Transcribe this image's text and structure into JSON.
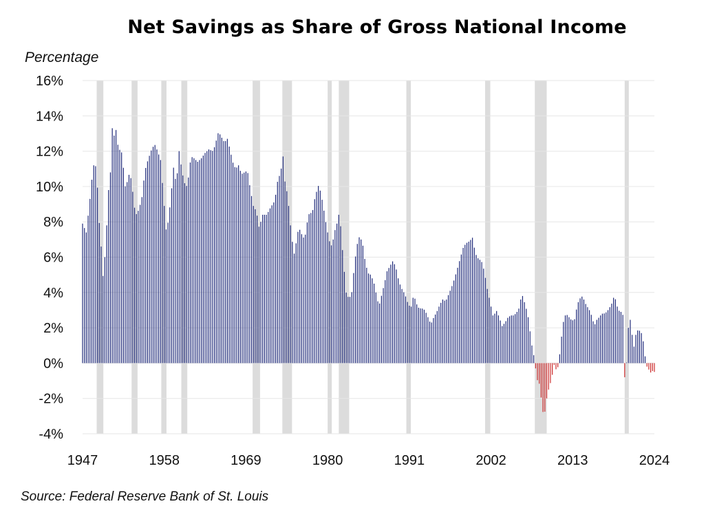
{
  "title": "Net Savings as Share of Gross National Income",
  "source": "Source: Federal Reserve Bank of St. Louis",
  "colors": {
    "positive": "#1f2a7a",
    "negative": "#cc2a2a",
    "recession": "#dcdcdc",
    "grid": "#e6e6e6"
  },
  "chart_data": {
    "type": "bar",
    "title": "Net Savings as Share of Gross National Income",
    "ylabel": "Percentage",
    "xlabel": "",
    "ylim": [
      -4,
      16
    ],
    "xlim": [
      1947,
      2024
    ],
    "y_ticks": [
      "16%",
      "14%",
      "12%",
      "10%",
      "8%",
      "6%",
      "4%",
      "2%",
      "0%",
      "-2%",
      "-4%"
    ],
    "y_tick_values": [
      16,
      14,
      12,
      10,
      8,
      6,
      4,
      2,
      0,
      -2,
      -4
    ],
    "x_ticks": [
      "1947",
      "1958",
      "1969",
      "1980",
      "1991",
      "2002",
      "2013",
      "2024"
    ],
    "x_tick_values": [
      1947,
      1958,
      1969,
      1980,
      1991,
      2002,
      2013,
      2024
    ],
    "frequency": "quarterly",
    "grid": true,
    "anchors": [
      [
        1947.0,
        7.9
      ],
      [
        1947.5,
        7.4
      ],
      [
        1948.0,
        9.3
      ],
      [
        1948.3,
        10.6
      ],
      [
        1948.6,
        11.5
      ],
      [
        1948.9,
        10.8
      ],
      [
        1949.2,
        8.2
      ],
      [
        1949.5,
        6.6
      ],
      [
        1949.8,
        4.6
      ],
      [
        1950.2,
        7.4
      ],
      [
        1950.5,
        9.8
      ],
      [
        1950.8,
        11.0
      ],
      [
        1951.0,
        13.3
      ],
      [
        1951.3,
        12.8
      ],
      [
        1951.5,
        13.2
      ],
      [
        1951.8,
        12.2
      ],
      [
        1952.3,
        11.9
      ],
      [
        1952.8,
        9.8
      ],
      [
        1953.2,
        10.7
      ],
      [
        1953.6,
        10.4
      ],
      [
        1953.9,
        9.0
      ],
      [
        1954.2,
        8.4
      ],
      [
        1954.6,
        8.7
      ],
      [
        1955.0,
        9.4
      ],
      [
        1955.4,
        10.9
      ],
      [
        1955.8,
        11.5
      ],
      [
        1956.3,
        12.1
      ],
      [
        1956.7,
        12.4
      ],
      [
        1957.1,
        12.0
      ],
      [
        1957.5,
        11.5
      ],
      [
        1958.0,
        8.9
      ],
      [
        1958.3,
        7.3
      ],
      [
        1958.7,
        8.6
      ],
      [
        1959.0,
        9.9
      ],
      [
        1959.3,
        11.3
      ],
      [
        1959.6,
        10.0
      ],
      [
        1960.0,
        12.0
      ],
      [
        1960.4,
        10.8
      ],
      [
        1960.8,
        10.1
      ],
      [
        1961.1,
        10.0
      ],
      [
        1961.6,
        11.7
      ],
      [
        1962.0,
        11.6
      ],
      [
        1962.5,
        11.4
      ],
      [
        1963.0,
        11.6
      ],
      [
        1963.5,
        11.9
      ],
      [
        1964.0,
        12.1
      ],
      [
        1964.6,
        12.0
      ],
      [
        1965.0,
        12.6
      ],
      [
        1965.3,
        13.1
      ],
      [
        1965.7,
        12.8
      ],
      [
        1966.1,
        12.5
      ],
      [
        1966.5,
        12.7
      ],
      [
        1966.9,
        12.0
      ],
      [
        1967.2,
        11.4
      ],
      [
        1967.6,
        11.0
      ],
      [
        1968.0,
        11.2
      ],
      [
        1968.4,
        10.7
      ],
      [
        1968.8,
        10.8
      ],
      [
        1969.2,
        10.9
      ],
      [
        1969.6,
        9.8
      ],
      [
        1970.0,
        8.9
      ],
      [
        1970.4,
        8.6
      ],
      [
        1970.8,
        7.6
      ],
      [
        1971.2,
        8.4
      ],
      [
        1971.8,
        8.4
      ],
      [
        1972.3,
        8.8
      ],
      [
        1972.9,
        9.2
      ],
      [
        1973.2,
        10.2
      ],
      [
        1973.5,
        10.6
      ],
      [
        1973.8,
        11.1
      ],
      [
        1974.0,
        11.7
      ],
      [
        1974.3,
        10.0
      ],
      [
        1974.6,
        9.6
      ],
      [
        1974.9,
        8.2
      ],
      [
        1975.2,
        7.0
      ],
      [
        1975.5,
        6.2
      ],
      [
        1975.8,
        6.9
      ],
      [
        1976.1,
        7.7
      ],
      [
        1976.5,
        7.3
      ],
      [
        1976.9,
        7.0
      ],
      [
        1977.3,
        8.1
      ],
      [
        1977.6,
        8.6
      ],
      [
        1977.9,
        8.4
      ],
      [
        1978.2,
        9.2
      ],
      [
        1978.5,
        9.7
      ],
      [
        1978.8,
        10.1
      ],
      [
        1979.1,
        9.6
      ],
      [
        1979.4,
        8.9
      ],
      [
        1979.7,
        8.1
      ],
      [
        1980.0,
        7.4
      ],
      [
        1980.3,
        6.8
      ],
      [
        1980.6,
        6.6
      ],
      [
        1980.9,
        7.4
      ],
      [
        1981.2,
        7.8
      ],
      [
        1981.6,
        8.6
      ],
      [
        1981.9,
        6.9
      ],
      [
        1982.2,
        5.4
      ],
      [
        1982.5,
        4.0
      ],
      [
        1982.8,
        3.7
      ],
      [
        1983.2,
        3.8
      ],
      [
        1983.5,
        5.1
      ],
      [
        1983.9,
        6.6
      ],
      [
        1984.3,
        7.2
      ],
      [
        1984.7,
        6.8
      ],
      [
        1985.0,
        5.9
      ],
      [
        1985.4,
        5.1
      ],
      [
        1985.8,
        5.0
      ],
      [
        1986.2,
        4.6
      ],
      [
        1986.6,
        3.8
      ],
      [
        1986.9,
        3.2
      ],
      [
        1987.3,
        3.9
      ],
      [
        1987.7,
        4.6
      ],
      [
        1988.0,
        5.2
      ],
      [
        1988.4,
        5.5
      ],
      [
        1988.8,
        5.8
      ],
      [
        1989.2,
        5.4
      ],
      [
        1989.6,
        4.6
      ],
      [
        1990.0,
        4.2
      ],
      [
        1990.4,
        3.9
      ],
      [
        1990.8,
        3.4
      ],
      [
        1991.2,
        3.1
      ],
      [
        1991.6,
        3.9
      ],
      [
        1991.9,
        3.4
      ],
      [
        1992.3,
        3.1
      ],
      [
        1992.7,
        3.1
      ],
      [
        1993.1,
        3.0
      ],
      [
        1993.5,
        2.6
      ],
      [
        1993.9,
        2.2
      ],
      [
        1994.3,
        2.6
      ],
      [
        1994.7,
        2.9
      ],
      [
        1995.1,
        3.3
      ],
      [
        1995.5,
        3.6
      ],
      [
        1995.9,
        3.5
      ],
      [
        1996.3,
        3.9
      ],
      [
        1996.7,
        4.3
      ],
      [
        1997.1,
        4.8
      ],
      [
        1997.5,
        5.4
      ],
      [
        1997.9,
        6.0
      ],
      [
        1998.3,
        6.6
      ],
      [
        1998.7,
        6.8
      ],
      [
        1999.1,
        6.9
      ],
      [
        1999.5,
        7.1
      ],
      [
        1999.9,
        6.2
      ],
      [
        2000.3,
        5.9
      ],
      [
        2000.7,
        5.8
      ],
      [
        2001.1,
        5.2
      ],
      [
        2001.5,
        4.2
      ],
      [
        2001.9,
        3.4
      ],
      [
        2002.3,
        2.6
      ],
      [
        2002.7,
        3.0
      ],
      [
        2003.1,
        2.6
      ],
      [
        2003.5,
        2.1
      ],
      [
        2003.9,
        2.3
      ],
      [
        2004.3,
        2.6
      ],
      [
        2004.7,
        2.7
      ],
      [
        2005.1,
        2.7
      ],
      [
        2005.5,
        2.9
      ],
      [
        2005.9,
        3.2
      ],
      [
        2006.1,
        4.0
      ],
      [
        2006.4,
        3.6
      ],
      [
        2006.8,
        3.0
      ],
      [
        2007.1,
        2.4
      ],
      [
        2007.4,
        1.2
      ],
      [
        2007.7,
        0.6
      ],
      [
        2008.0,
        -0.3
      ],
      [
        2008.3,
        -1.1
      ],
      [
        2008.6,
        -1.2
      ],
      [
        2008.9,
        -2.7
      ],
      [
        2009.2,
        -2.9
      ],
      [
        2009.5,
        -2.0
      ],
      [
        2009.8,
        -1.4
      ],
      [
        2010.1,
        -1.0
      ],
      [
        2010.5,
        -0.1
      ],
      [
        2010.9,
        -0.5
      ],
      [
        2011.2,
        0.3
      ],
      [
        2011.5,
        1.5
      ],
      [
        2011.8,
        2.5
      ],
      [
        2012.1,
        2.8
      ],
      [
        2012.5,
        2.6
      ],
      [
        2012.9,
        2.4
      ],
      [
        2013.3,
        2.5
      ],
      [
        2013.6,
        3.3
      ],
      [
        2013.9,
        3.6
      ],
      [
        2014.2,
        3.8
      ],
      [
        2014.5,
        3.6
      ],
      [
        2014.8,
        3.3
      ],
      [
        2015.1,
        3.1
      ],
      [
        2015.4,
        2.9
      ],
      [
        2015.7,
        2.4
      ],
      [
        2016.0,
        2.2
      ],
      [
        2016.3,
        2.5
      ],
      [
        2016.6,
        2.6
      ],
      [
        2016.9,
        2.8
      ],
      [
        2017.2,
        2.8
      ],
      [
        2017.6,
        2.9
      ],
      [
        2017.9,
        3.1
      ],
      [
        2018.2,
        3.3
      ],
      [
        2018.5,
        3.7
      ],
      [
        2018.8,
        3.6
      ],
      [
        2019.1,
        3.0
      ],
      [
        2019.5,
        2.9
      ],
      [
        2019.8,
        2.7
      ],
      [
        2020.0,
        -0.8
      ],
      [
        2020.3,
        0.2
      ],
      [
        2020.6,
        2.9
      ],
      [
        2020.9,
        2.0
      ],
      [
        2021.2,
        0.8
      ],
      [
        2021.5,
        1.6
      ],
      [
        2021.8,
        1.9
      ],
      [
        2022.1,
        1.8
      ],
      [
        2022.4,
        1.6
      ],
      [
        2022.7,
        0.5
      ],
      [
        2023.0,
        -0.2
      ],
      [
        2023.3,
        -0.4
      ],
      [
        2023.6,
        -0.6
      ],
      [
        2023.9,
        -0.3
      ],
      [
        2024.0,
        -0.5
      ]
    ],
    "recessions": [
      [
        1948.9,
        1949.8
      ],
      [
        1953.6,
        1954.4
      ],
      [
        1957.6,
        1958.3
      ],
      [
        1960.3,
        1961.1
      ],
      [
        1969.9,
        1970.9
      ],
      [
        1973.9,
        1975.2
      ],
      [
        1980.0,
        1980.5
      ],
      [
        1981.5,
        1982.9
      ],
      [
        1990.6,
        1991.2
      ],
      [
        2001.2,
        2001.9
      ],
      [
        2007.9,
        2009.5
      ],
      [
        2020.0,
        2020.4
      ]
    ]
  }
}
